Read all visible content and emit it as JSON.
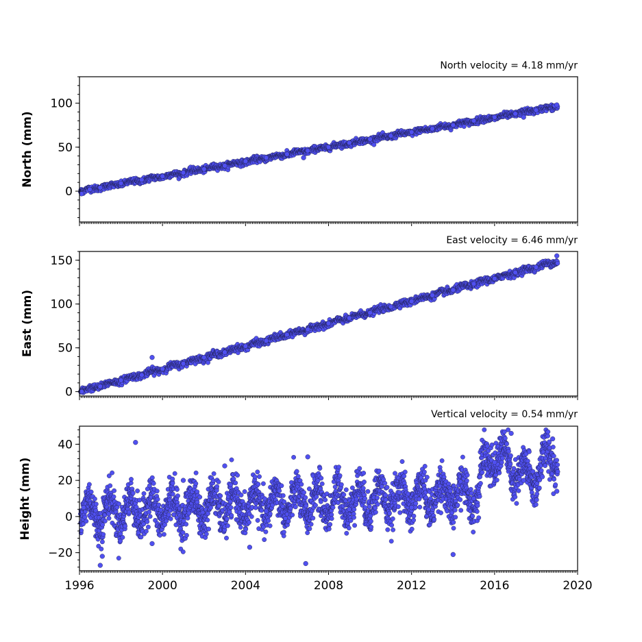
{
  "chart_data": [
    {
      "type": "scatter",
      "name": "north",
      "velocity_label": "North velocity = 4.18 mm/yr",
      "ylabel": "North (mm)",
      "xlim": [
        1996,
        2020
      ],
      "ylim": [
        -35,
        130
      ],
      "yticks": [
        0,
        50,
        100
      ],
      "marker_color": "#5050f0",
      "model": {
        "start": 0,
        "rate": 4.18,
        "noise": 1.6,
        "seasonal": 0.8
      },
      "points": [
        {
          "x": 1996.1,
          "y": -3
        },
        {
          "x": 1996.5,
          "y": 2
        },
        {
          "x": 1997.0,
          "y": 4
        },
        {
          "x": 1998.0,
          "y": 9
        },
        {
          "x": 1999.0,
          "y": 13
        },
        {
          "x": 2000.0,
          "y": 17
        },
        {
          "x": 2001.0,
          "y": 21
        },
        {
          "x": 2002.0,
          "y": 25
        },
        {
          "x": 2003.0,
          "y": 29
        },
        {
          "x": 2004.0,
          "y": 34
        },
        {
          "x": 2005.0,
          "y": 38
        },
        {
          "x": 2006.0,
          "y": 42
        },
        {
          "x": 2006.8,
          "y": 38
        },
        {
          "x": 2007.0,
          "y": 46
        },
        {
          "x": 2008.0,
          "y": 50
        },
        {
          "x": 2009.0,
          "y": 55
        },
        {
          "x": 2010.0,
          "y": 59
        },
        {
          "x": 2011.0,
          "y": 63
        },
        {
          "x": 2012.0,
          "y": 67
        },
        {
          "x": 2013.0,
          "y": 71
        },
        {
          "x": 2014.0,
          "y": 75
        },
        {
          "x": 2015.0,
          "y": 80
        },
        {
          "x": 2016.0,
          "y": 84
        },
        {
          "x": 2017.0,
          "y": 88
        },
        {
          "x": 2017.4,
          "y": 84
        },
        {
          "x": 2018.0,
          "y": 92
        },
        {
          "x": 2018.9,
          "y": 97
        },
        {
          "x": 2019.0,
          "y": 98
        }
      ]
    },
    {
      "type": "scatter",
      "name": "east",
      "velocity_label": "East velocity = 6.46 mm/yr",
      "ylabel": "East (mm)",
      "xlim": [
        1996,
        2020
      ],
      "ylim": [
        -5,
        160
      ],
      "yticks": [
        0,
        50,
        100,
        150
      ],
      "marker_color": "#5050f0",
      "model": {
        "start": 0,
        "rate": 6.46,
        "noise": 1.8,
        "seasonal": 1.0
      },
      "points": [
        {
          "x": 1996.1,
          "y": 0
        },
        {
          "x": 1997.0,
          "y": 6
        },
        {
          "x": 1998.0,
          "y": 13
        },
        {
          "x": 1999.0,
          "y": 19
        },
        {
          "x": 1999.5,
          "y": 39
        },
        {
          "x": 2000.0,
          "y": 26
        },
        {
          "x": 2001.0,
          "y": 32
        },
        {
          "x": 2002.0,
          "y": 39
        },
        {
          "x": 2003.0,
          "y": 45
        },
        {
          "x": 2004.0,
          "y": 52
        },
        {
          "x": 2005.0,
          "y": 58
        },
        {
          "x": 2006.0,
          "y": 65
        },
        {
          "x": 2007.0,
          "y": 71
        },
        {
          "x": 2008.0,
          "y": 78
        },
        {
          "x": 2009.0,
          "y": 84
        },
        {
          "x": 2010.0,
          "y": 90
        },
        {
          "x": 2011.0,
          "y": 97
        },
        {
          "x": 2012.0,
          "y": 103
        },
        {
          "x": 2013.0,
          "y": 110
        },
        {
          "x": 2014.0,
          "y": 116
        },
        {
          "x": 2015.0,
          "y": 123
        },
        {
          "x": 2016.0,
          "y": 129
        },
        {
          "x": 2017.0,
          "y": 136
        },
        {
          "x": 2018.0,
          "y": 142
        },
        {
          "x": 2019.0,
          "y": 155
        }
      ]
    },
    {
      "type": "scatter",
      "name": "height",
      "velocity_label": "Vertical velocity = 0.54 mm/yr",
      "ylabel": "Height (mm)",
      "xlabel_ticks": [
        "1996",
        "2000",
        "2004",
        "2008",
        "2012",
        "2016",
        "2020"
      ],
      "xlim": [
        1996,
        2020
      ],
      "ylim": [
        -30,
        50
      ],
      "yticks": [
        -20,
        0,
        20,
        40
      ],
      "marker_color": "#5050f0",
      "model": {
        "start": 2,
        "rate": 0.54,
        "noise": 5.5,
        "seasonal": 8
      },
      "points": [
        {
          "x": 1996.2,
          "y": 5
        },
        {
          "x": 1997.0,
          "y": -27
        },
        {
          "x": 1997.1,
          "y": -22
        },
        {
          "x": 1998.7,
          "y": 41
        },
        {
          "x": 1999.5,
          "y": -15
        },
        {
          "x": 2001.0,
          "y": 20
        },
        {
          "x": 2003.0,
          "y": 28
        },
        {
          "x": 2004.2,
          "y": -17
        },
        {
          "x": 2005.0,
          "y": 3
        },
        {
          "x": 2006.9,
          "y": -26
        },
        {
          "x": 2007.0,
          "y": 33
        },
        {
          "x": 2009.0,
          "y": 4
        },
        {
          "x": 2012.0,
          "y": 5
        },
        {
          "x": 2014.0,
          "y": -21
        },
        {
          "x": 2015.0,
          "y": 10
        },
        {
          "x": 2016.0,
          "y": 30
        },
        {
          "x": 2016.8,
          "y": 46
        },
        {
          "x": 2017.4,
          "y": 20
        },
        {
          "x": 2018.3,
          "y": 22
        },
        {
          "x": 2018.8,
          "y": 43
        },
        {
          "x": 2019.0,
          "y": 14
        }
      ]
    }
  ]
}
